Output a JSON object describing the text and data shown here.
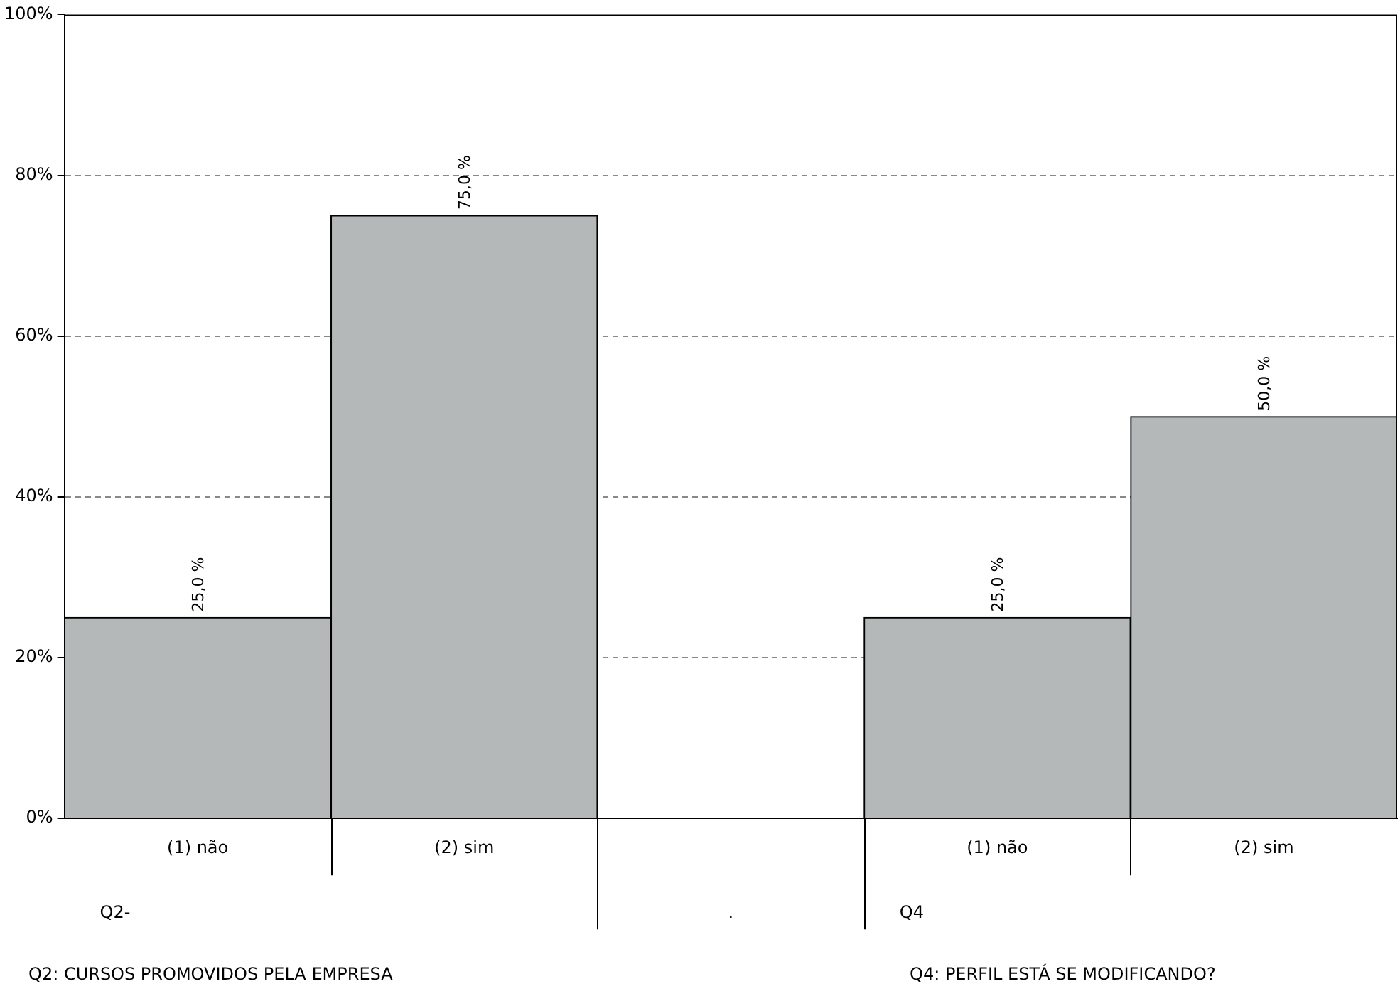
{
  "chart_data": {
    "type": "bar",
    "categories": [
      "(1) não",
      "(2) sim",
      null,
      "(1) não",
      "(2) sim"
    ],
    "values": [
      25,
      75,
      null,
      25,
      50
    ],
    "color": "#b4b8b8",
    "value_labels": [
      "25,0 %",
      "75,0 %",
      null,
      "25,0 %",
      "50,0 %"
    ],
    "ylim": [
      0,
      100
    ],
    "yticks": [
      {
        "value": 0,
        "label": "0%"
      },
      {
        "value": 20,
        "label": "20%"
      },
      {
        "value": 40,
        "label": "40%"
      },
      {
        "value": 60,
        "label": "60%"
      },
      {
        "value": 80,
        "label": "80%"
      },
      {
        "value": 100,
        "label": "100%"
      }
    ],
    "grid": "y",
    "line_style": "dashed",
    "legend": false,
    "annotations": [
      "Q2-",
      ".",
      "Q4",
      "Q2: CURSOS PROMOVIDOS PELA EMPRESA",
      "Q4: PERFIL ESTÁ SE MODIFICANDO?"
    ]
  }
}
